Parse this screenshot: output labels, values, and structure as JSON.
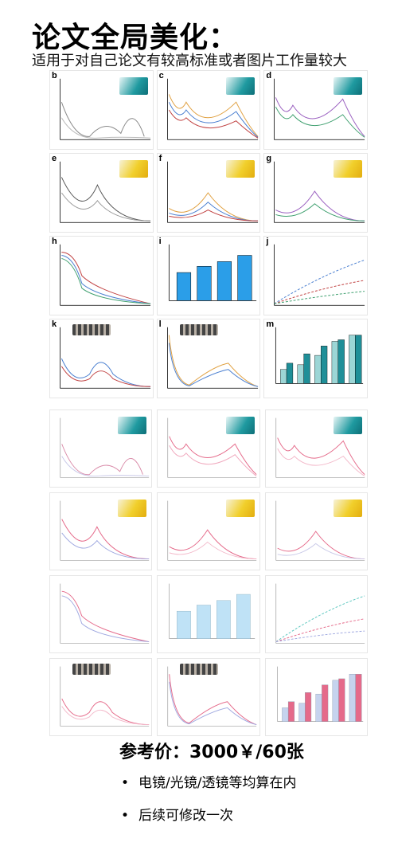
{
  "header": {
    "title": "论文全局美化：",
    "subtitle": "适用于对自己论文有较高标准或者图片工作量较大"
  },
  "top_panels": [
    {
      "letter": "b"
    },
    {
      "letter": "c"
    },
    {
      "letter": "d"
    },
    {
      "letter": "e"
    },
    {
      "letter": "f"
    },
    {
      "letter": "g"
    },
    {
      "letter": "h"
    },
    {
      "letter": "i"
    },
    {
      "letter": "j"
    },
    {
      "letter": "k"
    },
    {
      "letter": "l"
    },
    {
      "letter": "m"
    }
  ],
  "offer": {
    "price": "参考价：3000￥/60张",
    "bullets": [
      "电镜/光镜/透镜等均算在内",
      "后续可修改一次"
    ]
  },
  "colors": {
    "teal_swatch": "#1f9aa0",
    "yellow_swatch": "#f1cf2b",
    "bar_blue": "#2b9ee8",
    "bar_pink": "#e56a8a"
  }
}
